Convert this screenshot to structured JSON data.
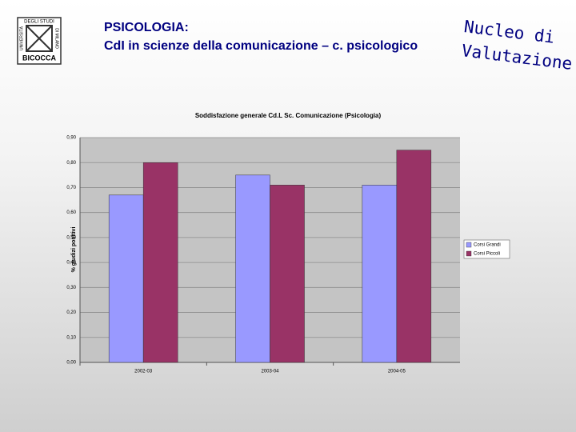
{
  "logo": {
    "lines": [
      "UNIVERSITÀ",
      "DEGLI STUDI",
      "DI MILANO",
      "BICOCCA"
    ]
  },
  "header": {
    "title": "PSICOLOGIA:",
    "subtitle": "CdI in scienze della comunicazione – c. psicologico",
    "stamp": [
      "Nucleo di",
      "Valutazione"
    ]
  },
  "chart_data": {
    "type": "bar",
    "title": "Soddisfazione generale Cd.L Sc. Comunicazione (Psicologia)",
    "y_label": "% giudizi positivi",
    "categories": [
      "2002-03",
      "2003-04",
      "2004-05"
    ],
    "series": [
      {
        "name": "Corsi Grandi",
        "color": "#9999ff",
        "values": [
          0.67,
          0.75,
          0.71
        ]
      },
      {
        "name": "Corsi Piccoli",
        "color": "#993366",
        "values": [
          0.8,
          0.71,
          0.85
        ]
      }
    ],
    "ylim": [
      0,
      0.9
    ],
    "yticks": [
      {
        "value": 0,
        "label": "0,00"
      },
      {
        "value": 0.1,
        "label": "0,10"
      },
      {
        "value": 0.2,
        "label": "0,20"
      },
      {
        "value": 0.3,
        "label": "0,30"
      },
      {
        "value": 0.4,
        "label": "0,40"
      },
      {
        "value": 0.5,
        "label": "0,50"
      },
      {
        "value": 0.6,
        "label": "0,60"
      },
      {
        "value": 0.7,
        "label": "0,70"
      },
      {
        "value": 0.8,
        "label": "0,80"
      },
      {
        "value": 0.9,
        "label": "0,90"
      }
    ],
    "grid": true,
    "legend": "right"
  }
}
